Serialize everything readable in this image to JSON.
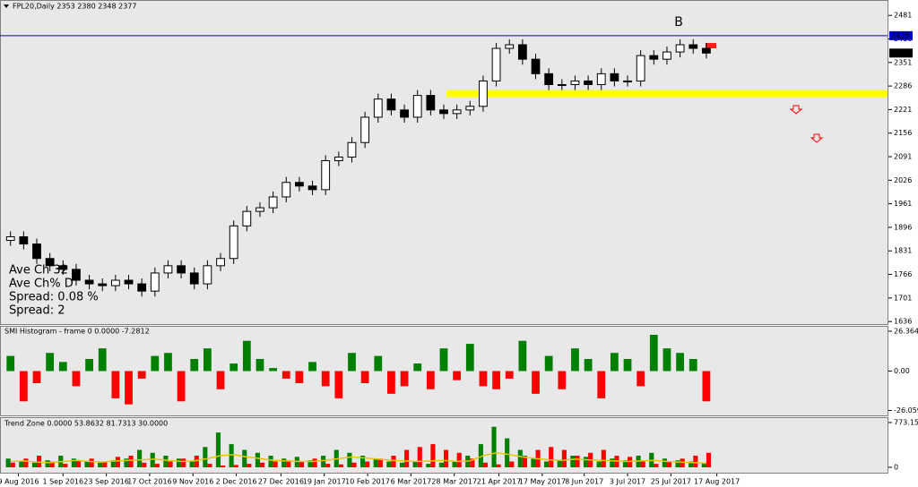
{
  "chart_data": [
    {
      "type": "candlestick",
      "title": "FPL20,Daily 2353 2380 2348 2377",
      "open": [
        1860,
        1870,
        1850,
        1810,
        1790,
        1780,
        1750,
        1740,
        1735,
        1750,
        1740,
        1720,
        1770,
        1790,
        1770,
        1740,
        1790,
        1810,
        1900,
        1940,
        1950,
        1980,
        2020,
        2010,
        2000,
        2080,
        2090,
        2130,
        2200,
        2250,
        2220,
        2200,
        2260,
        2220,
        2210,
        2220,
        2230,
        2300,
        2390,
        2400,
        2360,
        2320,
        2290,
        2290,
        2300,
        2290,
        2320,
        2300,
        2300,
        2370,
        2360,
        2380,
        2400,
        2390
      ],
      "high": [
        1885,
        1885,
        1865,
        1825,
        1805,
        1795,
        1765,
        1755,
        1765,
        1765,
        1755,
        1785,
        1805,
        1805,
        1785,
        1805,
        1825,
        1915,
        1955,
        1965,
        1995,
        2035,
        2035,
        2025,
        2095,
        2105,
        2145,
        2215,
        2265,
        2265,
        2235,
        2275,
        2275,
        2235,
        2235,
        2245,
        2315,
        2405,
        2415,
        2415,
        2375,
        2335,
        2305,
        2315,
        2315,
        2335,
        2335,
        2315,
        2385,
        2385,
        2395,
        2415,
        2415,
        2405
      ],
      "low": [
        1845,
        1835,
        1795,
        1775,
        1765,
        1735,
        1725,
        1720,
        1720,
        1725,
        1705,
        1705,
        1755,
        1755,
        1725,
        1725,
        1775,
        1795,
        1885,
        1925,
        1935,
        1965,
        1995,
        1985,
        1985,
        2065,
        2075,
        2115,
        2185,
        2205,
        2185,
        2185,
        2205,
        2195,
        2195,
        2205,
        2215,
        2285,
        2375,
        2345,
        2305,
        2275,
        2275,
        2275,
        2275,
        2275,
        2285,
        2285,
        2285,
        2345,
        2345,
        2365,
        2375,
        2362
      ],
      "close": [
        1870,
        1850,
        1810,
        1790,
        1780,
        1750,
        1740,
        1735,
        1750,
        1740,
        1720,
        1770,
        1790,
        1770,
        1740,
        1790,
        1810,
        1900,
        1940,
        1950,
        1980,
        2020,
        2010,
        2000,
        2080,
        2090,
        2130,
        2200,
        2250,
        2220,
        2200,
        2260,
        2220,
        2210,
        2220,
        2230,
        2300,
        2390,
        2400,
        2360,
        2320,
        2290,
        2290,
        2300,
        2290,
        2320,
        2300,
        2300,
        2370,
        2360,
        2380,
        2400,
        2390,
        2377
      ],
      "bull_color": "#ffffff",
      "bear_color": "#000000",
      "hline": {
        "value": 2425,
        "color": "#0000cd"
      },
      "zone": {
        "range": [
          2255,
          2275
        ],
        "color": "#ffff00"
      },
      "annotation": "B",
      "info_texts": [
        {
          "text": "Ave Ch 32",
          "color": "#8b5a2b"
        },
        {
          "text": "Ave Ch% D",
          "color": "#5f8f5f"
        },
        {
          "text": "Spread: 0.08 %",
          "color": "#7b68ee"
        },
        {
          "text": "Spread: 2",
          "color": "#ff0000"
        }
      ],
      "xlim": [
        -0.8,
        66.8
      ],
      "xticks": [
        {
          "value": 0.6,
          "label": "9 Aug 2016"
        },
        {
          "value": 4.0,
          "label": "1 Sep 2016"
        },
        {
          "value": 7.3,
          "label": "23 Sep 2016"
        },
        {
          "value": 10.6,
          "label": "17 Oct 2016"
        },
        {
          "value": 13.9,
          "label": "9 Nov 2016"
        },
        {
          "value": 17.2,
          "label": "2 Dec 2016"
        },
        {
          "value": 20.6,
          "label": "27 Dec 2016"
        },
        {
          "value": 23.9,
          "label": "19 Jan 2017"
        },
        {
          "value": 27.2,
          "label": "10 Feb 2017"
        },
        {
          "value": 30.5,
          "label": "6 Mar 2017"
        },
        {
          "value": 33.8,
          "label": "28 Mar 2017"
        },
        {
          "value": 37.2,
          "label": "21 Apr 2017"
        },
        {
          "value": 40.5,
          "label": "17 May 2017"
        },
        {
          "value": 43.7,
          "label": "8 Jun 2017"
        },
        {
          "value": 47.0,
          "label": "3 Jul 2017"
        },
        {
          "value": 50.3,
          "label": "25 Jul 2017"
        },
        {
          "value": 53.8,
          "label": "17 Aug 2017"
        }
      ],
      "ylim": [
        1629,
        2521
      ],
      "yticks": [
        2481,
        2416,
        2351,
        2286,
        2221,
        2156,
        2091,
        2026,
        1961,
        1896,
        1831,
        1766,
        1701,
        1636
      ]
    },
    {
      "type": "histogram",
      "title": "SMI Histogram - frame 0 0.0000 -7.2812",
      "values": [
        10,
        -20,
        -8,
        12,
        6,
        -10,
        8,
        15,
        -18,
        -22,
        -5,
        10,
        12,
        -20,
        8,
        15,
        -12,
        5,
        20,
        8,
        2,
        -5,
        -8,
        6,
        -10,
        -18,
        12,
        -8,
        10,
        -15,
        -10,
        5,
        -12,
        15,
        -6,
        18,
        -10,
        -12,
        -5,
        20,
        -15,
        10,
        -12,
        15,
        8,
        -18,
        12,
        8,
        -10,
        24,
        15,
        12,
        8,
        -20
      ],
      "pos_color": "#008000",
      "neg_color": "#ff0000",
      "ylim": [
        -29.3,
        29.3
      ],
      "yticks": [
        26.364,
        {
          "value": 0,
          "label": "0.00"
        },
        -26.0598
      ]
    },
    {
      "type": "combo",
      "title": "Trend Zone 0.0000 53.8632 81.7313 30.0000",
      "series": [
        {
          "color": "#008000",
          "values": [
            150,
            100,
            80,
            120,
            200,
            150,
            100,
            80,
            120,
            150,
            300,
            250,
            200,
            150,
            100,
            350,
            600,
            400,
            300,
            250,
            200,
            150,
            180,
            120,
            200,
            300,
            250,
            200,
            150,
            100,
            80,
            100,
            60,
            80,
            100,
            200,
            400,
            700,
            500,
            300,
            150,
            100,
            120,
            200,
            180,
            100,
            150,
            120,
            200,
            250,
            150,
            120,
            100,
            80
          ]
        },
        {
          "color": "#ff0000",
          "values": [
            80,
            150,
            200,
            100,
            60,
            120,
            150,
            100,
            180,
            200,
            80,
            60,
            100,
            150,
            200,
            60,
            30,
            40,
            60,
            80,
            100,
            120,
            100,
            150,
            60,
            50,
            80,
            100,
            150,
            200,
            300,
            350,
            400,
            300,
            250,
            150,
            80,
            50,
            100,
            200,
            300,
            350,
            300,
            200,
            250,
            300,
            200,
            180,
            100,
            60,
            100,
            150,
            200,
            250
          ]
        }
      ],
      "line": {
        "color": "#e6c800",
        "values": [
          100,
          110,
          90,
          80,
          100,
          120,
          100,
          90,
          110,
          120,
          130,
          140,
          120,
          100,
          110,
          150,
          200,
          220,
          180,
          150,
          120,
          110,
          100,
          100,
          120,
          150,
          180,
          160,
          140,
          120,
          110,
          100,
          110,
          120,
          100,
          110,
          200,
          250,
          220,
          180,
          150,
          130,
          120,
          140,
          130,
          120,
          110,
          100,
          110,
          120,
          100,
          90,
          80,
          70
        ]
      },
      "ylim": [
        -93,
        850
      ],
      "yticks": [
        773.1532,
        0
      ]
    }
  ]
}
